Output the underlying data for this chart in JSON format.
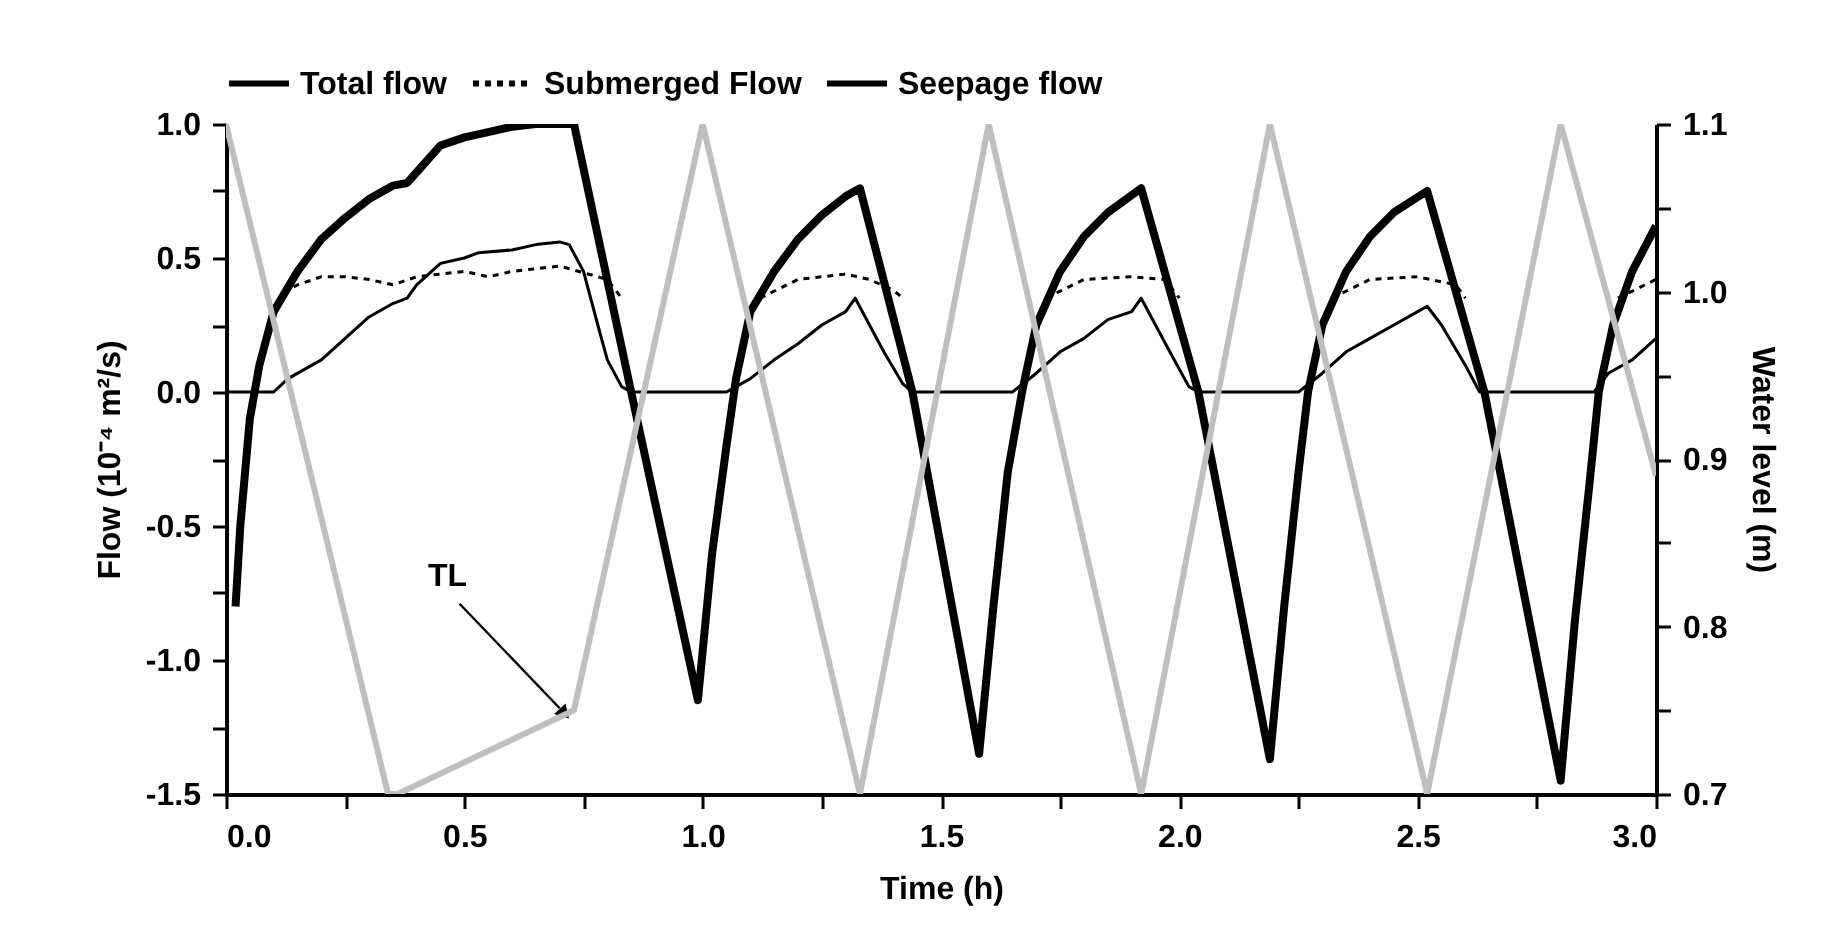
{
  "chart_data": {
    "type": "line",
    "xlabel": "Time (h)",
    "ylabel": "Flow (10⁻⁴ m²/s)",
    "y2label": "Water level (m)",
    "xlim": [
      0,
      3
    ],
    "ylim": [
      -1.5,
      1
    ],
    "y2lim": [
      0.7,
      1.1
    ],
    "xticks": [
      {
        "value": 0,
        "label": "0.0"
      },
      {
        "value": 0.25,
        "label": null
      },
      {
        "value": 0.5,
        "label": "0.5"
      },
      {
        "value": 0.75,
        "label": null
      },
      {
        "value": 1,
        "label": "1.0"
      },
      {
        "value": 1.25,
        "label": null
      },
      {
        "value": 1.5,
        "label": "1.5"
      },
      {
        "value": 1.75,
        "label": null
      },
      {
        "value": 2,
        "label": "2.0"
      },
      {
        "value": 2.25,
        "label": null
      },
      {
        "value": 2.5,
        "label": "2.5"
      },
      {
        "value": 2.75,
        "label": null
      },
      {
        "value": 3,
        "label": "3.0"
      }
    ],
    "yticks": [
      {
        "value": -1.5,
        "label": "-1.5"
      },
      {
        "value": -1.25,
        "label": null
      },
      {
        "value": -1,
        "label": "-1.0"
      },
      {
        "value": -0.75,
        "label": null
      },
      {
        "value": -0.5,
        "label": "-0.5"
      },
      {
        "value": -0.25,
        "label": null
      },
      {
        "value": 0,
        "label": "0.0"
      },
      {
        "value": 0.25,
        "label": null
      },
      {
        "value": 0.5,
        "label": "0.5"
      },
      {
        "value": 0.75,
        "label": null
      },
      {
        "value": 1,
        "label": "1.0"
      }
    ],
    "y2ticks": [
      {
        "value": 0.7,
        "label": "0.7"
      },
      {
        "value": 0.75,
        "label": null
      },
      {
        "value": 0.8,
        "label": "0.8"
      },
      {
        "value": 0.85,
        "label": null
      },
      {
        "value": 0.9,
        "label": "0.9"
      },
      {
        "value": 0.95,
        "label": null
      },
      {
        "value": 1,
        "label": "1.0"
      },
      {
        "value": 1.05,
        "label": null
      },
      {
        "value": 1.1,
        "label": "1.1"
      }
    ],
    "grid": false,
    "legend": "top",
    "annotations": [
      {
        "text": "TL",
        "x": 0.71,
        "y": -1.2
      }
    ],
    "series": [
      {
        "name": "Total flow",
        "color": "#000000",
        "line_style": "solid",
        "x": [
          0.02,
          0.03,
          0.05,
          0.07,
          0.1,
          0.15,
          0.2,
          0.25,
          0.3,
          0.35,
          0.38,
          0.4,
          0.45,
          0.5,
          0.55,
          0.6,
          0.65,
          0.73,
          0.85,
          0.99,
          1.02,
          1.05,
          1.07,
          1.1,
          1.15,
          1.2,
          1.25,
          1.3,
          1.33,
          1.44,
          1.58,
          1.61,
          1.64,
          1.67,
          1.7,
          1.75,
          1.8,
          1.85,
          1.92,
          2.04,
          2.19,
          2.22,
          2.25,
          2.27,
          2.3,
          2.35,
          2.4,
          2.45,
          2.52,
          2.64,
          2.8,
          2.83,
          2.86,
          2.88,
          2.91,
          2.95,
          3.0
        ],
        "values": [
          -0.8,
          -0.5,
          -0.1,
          0.1,
          0.3,
          0.45,
          0.57,
          0.65,
          0.72,
          0.77,
          0.78,
          0.82,
          0.92,
          0.95,
          0.97,
          0.99,
          1.0,
          1.0,
          0.0,
          -1.15,
          -0.6,
          -0.2,
          0.05,
          0.3,
          0.45,
          0.57,
          0.66,
          0.73,
          0.76,
          0.0,
          -1.35,
          -0.8,
          -0.3,
          0.0,
          0.25,
          0.45,
          0.58,
          0.67,
          0.76,
          0.0,
          -1.37,
          -0.8,
          -0.3,
          0.0,
          0.25,
          0.45,
          0.58,
          0.67,
          0.75,
          0.0,
          -1.45,
          -0.85,
          -0.35,
          0.0,
          0.25,
          0.45,
          0.62
        ]
      },
      {
        "name": "Submerged Flow",
        "color": "#000000",
        "line_style": "dotted",
        "x": [
          0.12,
          0.15,
          0.2,
          0.25,
          0.3,
          0.35,
          0.4,
          0.5,
          0.55,
          0.6,
          0.7,
          0.8,
          0.83,
          0.9,
          1.12,
          1.2,
          1.3,
          1.35,
          1.4,
          1.42,
          1.5,
          1.72,
          1.8,
          1.9,
          1.97,
          2.0,
          2.1,
          2.32,
          2.4,
          2.5,
          2.58,
          2.6,
          2.7,
          2.92,
          3.0
        ],
        "values": [
          0.37,
          0.4,
          0.43,
          0.43,
          0.42,
          0.4,
          0.43,
          0.45,
          0.43,
          0.45,
          0.47,
          0.42,
          0.35,
          null,
          0.35,
          0.42,
          0.44,
          0.42,
          0.38,
          0.35,
          null,
          0.35,
          0.42,
          0.43,
          0.42,
          0.35,
          null,
          0.35,
          0.42,
          0.43,
          0.4,
          0.35,
          null,
          0.35,
          0.42
        ]
      },
      {
        "name": "Seepage flow",
        "color": "#000000",
        "line_style": "solid",
        "x": [
          0,
          0.1,
          0.13,
          0.2,
          0.25,
          0.3,
          0.35,
          0.38,
          0.4,
          0.45,
          0.5,
          0.53,
          0.6,
          0.65,
          0.7,
          0.72,
          0.75,
          0.78,
          0.8,
          0.83,
          0.85,
          1.05,
          1.1,
          1.15,
          1.2,
          1.25,
          1.3,
          1.32,
          1.35,
          1.38,
          1.42,
          1.44,
          1.65,
          1.7,
          1.75,
          1.8,
          1.85,
          1.9,
          1.92,
          1.95,
          1.98,
          2.02,
          2.04,
          2.25,
          2.3,
          2.35,
          2.4,
          2.45,
          2.5,
          2.52,
          2.55,
          2.6,
          2.63,
          2.87,
          2.9,
          2.95,
          3.0
        ],
        "values": [
          0,
          0,
          0.05,
          0.12,
          0.2,
          0.28,
          0.33,
          0.35,
          0.4,
          0.48,
          0.5,
          0.52,
          0.53,
          0.55,
          0.56,
          0.55,
          0.45,
          0.25,
          0.12,
          0.02,
          0,
          0,
          0.05,
          0.12,
          0.18,
          0.25,
          0.3,
          0.35,
          0.25,
          0.15,
          0.03,
          0,
          0,
          0.07,
          0.15,
          0.2,
          0.27,
          0.3,
          0.35,
          0.25,
          0.15,
          0.02,
          0,
          0,
          0.07,
          0.15,
          0.2,
          0.25,
          0.3,
          0.32,
          0.25,
          0.1,
          0,
          0,
          0.07,
          0.12,
          0.2
        ]
      },
      {
        "color": "#bfbfbf",
        "line_style": "solid",
        "axis": "y2",
        "x": [
          0,
          0.34,
          0.36,
          0.73,
          1.0,
          1.33,
          1.6,
          1.92,
          2.19,
          2.52,
          2.8,
          3.0
        ],
        "values": [
          1.1,
          0.7,
          0.7,
          0.75,
          1.1,
          0.7,
          1.1,
          0.7,
          1.1,
          0.7,
          1.1,
          0.89
        ]
      }
    ]
  }
}
